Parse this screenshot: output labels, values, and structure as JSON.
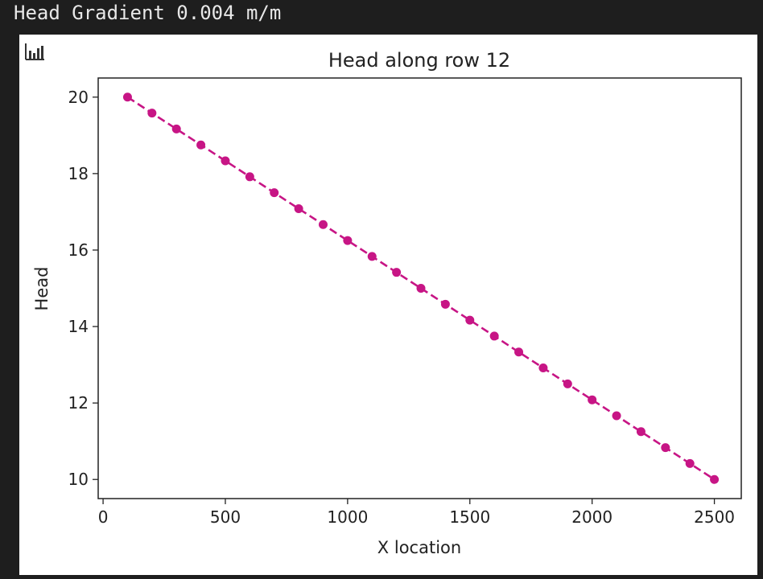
{
  "console": {
    "output_text": "Head Gradient 0.004 m/m"
  },
  "toolbar": {
    "chart_toggle_icon": "bar-chart-icon"
  },
  "colors": {
    "series": "#c71585",
    "axis": "#222222"
  },
  "chart_data": {
    "type": "line",
    "title": "Head along row 12",
    "xlabel": "X location",
    "ylabel": "Head",
    "xlim": [
      -20,
      2610
    ],
    "ylim": [
      9.5,
      20.5
    ],
    "xticks": [
      0,
      500,
      1000,
      1500,
      2000,
      2500
    ],
    "yticks": [
      10,
      12,
      14,
      16,
      18,
      20
    ],
    "grid": false,
    "legend": "none",
    "line_style": "dashed",
    "marker": "circle",
    "series": [
      {
        "x": [
          100,
          200,
          300,
          400,
          500,
          600,
          700,
          800,
          900,
          1000,
          1100,
          1200,
          1300,
          1400,
          1500,
          1600,
          1700,
          1800,
          1900,
          2000,
          2100,
          2200,
          2300,
          2400,
          2500
        ],
        "values": [
          20.0,
          19.583,
          19.167,
          18.75,
          18.333,
          17.917,
          17.5,
          17.083,
          16.667,
          16.25,
          15.833,
          15.417,
          15.0,
          14.583,
          14.167,
          13.75,
          13.333,
          12.917,
          12.5,
          12.083,
          11.667,
          11.25,
          10.833,
          10.417,
          10.0
        ]
      }
    ]
  }
}
